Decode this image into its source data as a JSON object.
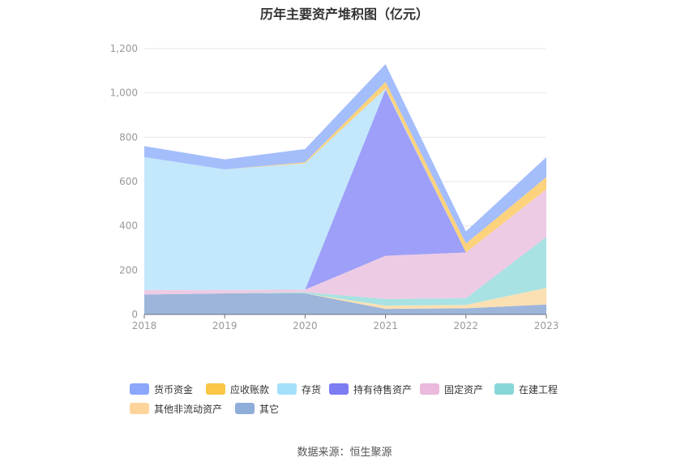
{
  "title": "历年主要资产堆积图（亿元）",
  "source": "数据来源：恒生聚源",
  "chart_data": {
    "type": "area",
    "stacked": true,
    "title": "历年主要资产堆积图（亿元）",
    "categories": [
      "2018",
      "2019",
      "2020",
      "2021",
      "2022",
      "2023"
    ],
    "ylim": [
      0,
      1200
    ],
    "yticks": [
      0,
      200,
      400,
      600,
      800,
      1000,
      1200
    ],
    "ytick_labels": [
      "0",
      "200",
      "400",
      "600",
      "800",
      "1,000",
      "1,200"
    ],
    "grid": true,
    "legend_position": "bottom",
    "series": [
      {
        "name": "其它",
        "color": "#9db5da",
        "values": [
          90,
          95,
          95,
          25,
          28,
          45
        ]
      },
      {
        "name": "其他非流动资产",
        "color": "#fbe0b4",
        "values": [
          0,
          0,
          0,
          15,
          15,
          75
        ]
      },
      {
        "name": "在建工程",
        "color": "#a8e2e3",
        "values": [
          0,
          0,
          5,
          30,
          30,
          230
        ]
      },
      {
        "name": "固定资产",
        "color": "#edcbe4",
        "values": [
          20,
          15,
          12,
          195,
          207,
          215
        ]
      },
      {
        "name": "持有待售资产",
        "color": "#9d9ff8",
        "values": [
          0,
          0,
          0,
          750,
          0,
          0
        ]
      },
      {
        "name": "存货",
        "color": "#c3e7fb",
        "values": [
          600,
          545,
          570,
          5,
          0,
          0
        ]
      },
      {
        "name": "应收账款",
        "color": "#fcd27c",
        "values": [
          0,
          0,
          5,
          30,
          40,
          55
        ]
      },
      {
        "name": "货币资金",
        "color": "#a4bdfb",
        "values": [
          50,
          45,
          60,
          80,
          55,
          90
        ]
      }
    ]
  },
  "legend": {
    "items": [
      {
        "name": "货币资金",
        "color": "#8ba7fb"
      },
      {
        "name": "应收账款",
        "color": "#fbc546"
      },
      {
        "name": "存货",
        "color": "#a5dff9"
      },
      {
        "name": "持有待售资产",
        "color": "#7d7cf3"
      },
      {
        "name": "固定资产",
        "color": "#eab9dc"
      },
      {
        "name": "在建工程",
        "color": "#88d7d8"
      },
      {
        "name": "其他非流动资产",
        "color": "#fdd49a"
      },
      {
        "name": "其它",
        "color": "#8fadd9"
      }
    ]
  }
}
